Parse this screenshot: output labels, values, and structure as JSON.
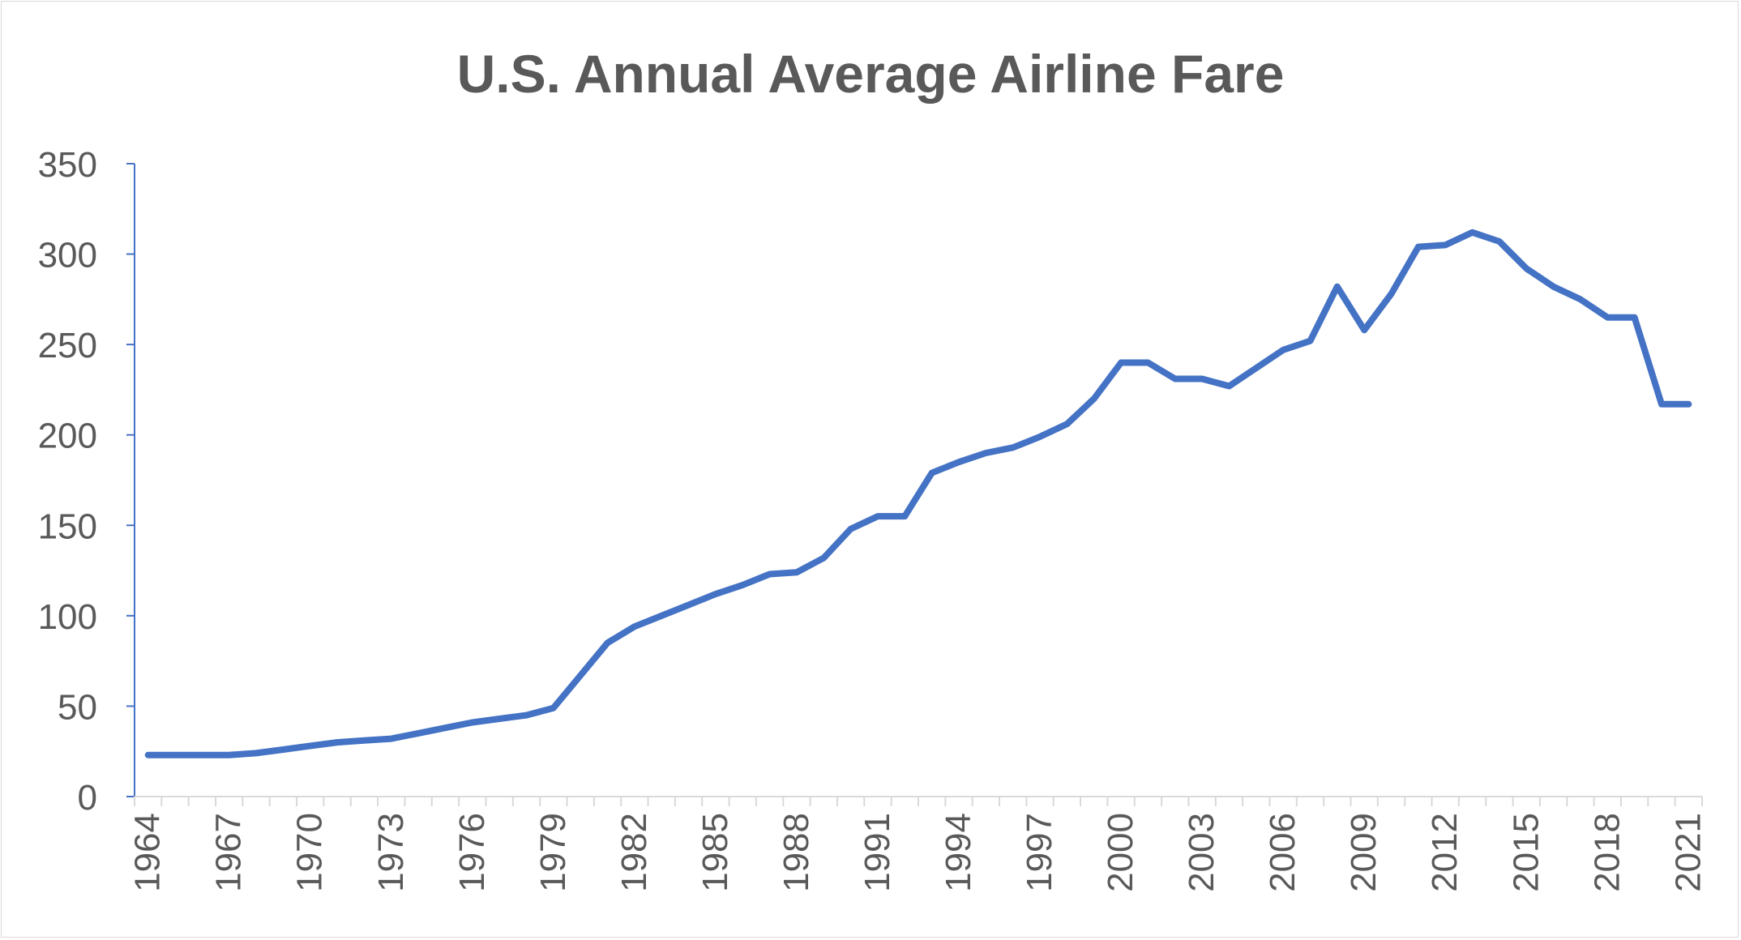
{
  "chart_data": {
    "type": "line",
    "title": "U.S. Annual Average Airline Fare",
    "xlabel": "",
    "ylabel": "",
    "ylim": [
      0,
      350
    ],
    "y_ticks": [
      0,
      50,
      100,
      150,
      200,
      250,
      300,
      350
    ],
    "x_tick_labels": [
      "1964",
      "1967",
      "1970",
      "1973",
      "1976",
      "1979",
      "1982",
      "1985",
      "1988",
      "1991",
      "1994",
      "1997",
      "2000",
      "2003",
      "2006",
      "2009",
      "2012",
      "2015",
      "2018",
      "2021"
    ],
    "grid": false,
    "legend": "none",
    "line_color": "#4472c4",
    "x": [
      1964,
      1965,
      1966,
      1967,
      1968,
      1969,
      1970,
      1971,
      1972,
      1973,
      1974,
      1975,
      1976,
      1977,
      1978,
      1979,
      1980,
      1981,
      1982,
      1983,
      1984,
      1985,
      1986,
      1987,
      1988,
      1989,
      1990,
      1991,
      1992,
      1993,
      1994,
      1995,
      1996,
      1997,
      1998,
      1999,
      2000,
      2001,
      2002,
      2003,
      2004,
      2005,
      2006,
      2007,
      2008,
      2009,
      2010,
      2011,
      2012,
      2013,
      2014,
      2015,
      2016,
      2017,
      2018,
      2019,
      2020,
      2021
    ],
    "values": [
      23,
      23,
      23,
      23,
      24,
      26,
      28,
      30,
      31,
      32,
      35,
      38,
      41,
      43,
      45,
      49,
      67,
      85,
      94,
      100,
      106,
      112,
      117,
      123,
      124,
      132,
      148,
      155,
      155,
      179,
      185,
      190,
      193,
      199,
      206,
      220,
      240,
      240,
      231,
      231,
      227,
      237,
      247,
      252,
      282,
      258,
      278,
      304,
      305,
      312,
      307,
      292,
      282,
      275,
      265,
      265,
      217,
      217
    ]
  }
}
